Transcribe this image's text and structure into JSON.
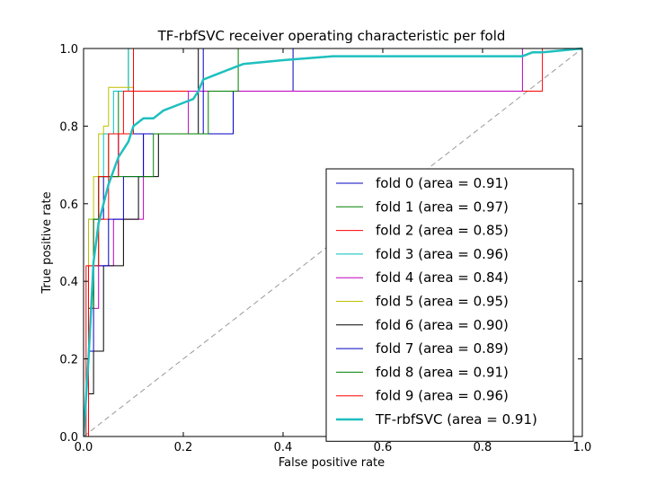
{
  "chart_data": {
    "type": "line",
    "title": "TF-rbfSVC receiver operating characteristic per fold",
    "xlabel": "False positive rate",
    "ylabel": "True positive rate",
    "xlim": [
      0,
      1
    ],
    "ylim": [
      0,
      1
    ],
    "xticks": [
      "0.0",
      "0.2",
      "0.4",
      "0.6",
      "0.8",
      "1.0"
    ],
    "yticks": [
      "0.0",
      "0.2",
      "0.4",
      "0.6",
      "0.8",
      "1.0"
    ],
    "grid": false,
    "legend_position": "lower-right",
    "diagonal": {
      "color": "#999999",
      "style": "dashed"
    },
    "series": [
      {
        "name": "fold 0 (area = 0.91)",
        "color": "#0000bf",
        "x": [
          0,
          0.01,
          0.01,
          0.02,
          0.02,
          0.04,
          0.04,
          0.07,
          0.07,
          0.13,
          0.13,
          0.3,
          0.3,
          0.42,
          0.42,
          1.0
        ],
        "y": [
          0,
          0,
          0.33,
          0.33,
          0.56,
          0.56,
          0.67,
          0.67,
          0.78,
          0.78,
          0.78,
          0.78,
          0.89,
          0.89,
          1.0,
          1.0
        ]
      },
      {
        "name": "fold 1 (area = 0.97)",
        "color": "#008000",
        "x": [
          0,
          0.01,
          0.01,
          0.02,
          0.02,
          0.03,
          0.03,
          0.05,
          0.05,
          0.07,
          0.07,
          0.09,
          0.09,
          0.31,
          0.31,
          1.0
        ],
        "y": [
          0,
          0,
          0.33,
          0.33,
          0.44,
          0.44,
          0.67,
          0.67,
          0.78,
          0.78,
          0.89,
          0.89,
          1.0,
          1.0,
          1.0,
          1.0
        ]
      },
      {
        "name": "fold 2 (area = 0.85)",
        "color": "#ff0000",
        "x": [
          0,
          0.005,
          0.005,
          0.02,
          0.02,
          0.05,
          0.05,
          0.07,
          0.07,
          0.1,
          0.1,
          0.92,
          0.92,
          1.0
        ],
        "y": [
          0,
          0,
          0.44,
          0.44,
          0.56,
          0.56,
          0.67,
          0.67,
          0.78,
          0.78,
          0.89,
          0.89,
          1.0,
          1.0
        ]
      },
      {
        "name": "fold 3 (area = 0.96)",
        "color": "#00bfbf",
        "x": [
          0,
          0.01,
          0.01,
          0.03,
          0.03,
          0.04,
          0.04,
          0.06,
          0.06,
          0.09,
          0.09,
          1.0
        ],
        "y": [
          0,
          0,
          0.56,
          0.56,
          0.67,
          0.67,
          0.78,
          0.78,
          0.89,
          0.89,
          1.0,
          1.0
        ]
      },
      {
        "name": "fold 4 (area = 0.84)",
        "color": "#bf00bf",
        "x": [
          0,
          0.01,
          0.01,
          0.03,
          0.03,
          0.06,
          0.06,
          0.12,
          0.12,
          0.21,
          0.21,
          0.88,
          0.88,
          1.0
        ],
        "y": [
          0,
          0,
          0.33,
          0.33,
          0.44,
          0.44,
          0.56,
          0.56,
          0.78,
          0.78,
          0.89,
          0.89,
          1.0,
          1.0
        ]
      },
      {
        "name": "fold 5 (area = 0.95)",
        "color": "#bfbf00",
        "x": [
          0,
          0.01,
          0.01,
          0.02,
          0.02,
          0.03,
          0.03,
          0.04,
          0.04,
          0.05,
          0.05,
          0.1,
          0.1,
          1.0
        ],
        "y": [
          0,
          0,
          0.56,
          0.56,
          0.67,
          0.67,
          0.78,
          0.78,
          0.8,
          0.8,
          0.9,
          0.9,
          1.0,
          1.0
        ]
      },
      {
        "name": "fold 6 (area = 0.90)",
        "color": "#000000",
        "x": [
          0,
          0.01,
          0.01,
          0.02,
          0.02,
          0.04,
          0.04,
          0.08,
          0.08,
          0.11,
          0.11,
          0.15,
          0.15,
          0.23,
          0.23,
          1.0
        ],
        "y": [
          0,
          0,
          0.11,
          0.11,
          0.22,
          0.22,
          0.44,
          0.44,
          0.56,
          0.56,
          0.67,
          0.67,
          0.78,
          0.78,
          1.0,
          1.0
        ]
      },
      {
        "name": "fold 7 (area = 0.89)",
        "color": "#0000bf",
        "x": [
          0,
          0.01,
          0.01,
          0.02,
          0.02,
          0.05,
          0.05,
          0.08,
          0.08,
          0.12,
          0.12,
          0.24,
          0.24,
          1.0
        ],
        "y": [
          0,
          0,
          0.22,
          0.22,
          0.44,
          0.44,
          0.56,
          0.56,
          0.67,
          0.67,
          0.78,
          0.78,
          1.0,
          1.0
        ]
      },
      {
        "name": "fold 8 (area = 0.91)",
        "color": "#008000",
        "x": [
          0,
          0.01,
          0.01,
          0.02,
          0.02,
          0.03,
          0.03,
          0.06,
          0.06,
          0.14,
          0.14,
          0.25,
          0.25,
          0.31,
          0.31,
          1.0
        ],
        "y": [
          0,
          0,
          0.33,
          0.33,
          0.56,
          0.56,
          0.67,
          0.67,
          0.67,
          0.67,
          0.78,
          0.78,
          0.89,
          0.89,
          1.0,
          1.0
        ]
      },
      {
        "name": "fold 9 (area = 0.96)",
        "color": "#ff0000",
        "x": [
          0,
          0.01,
          0.01,
          0.03,
          0.03,
          0.05,
          0.05,
          0.08,
          0.08,
          0.1,
          0.1,
          1.0
        ],
        "y": [
          0,
          0,
          0.44,
          0.44,
          0.67,
          0.67,
          0.78,
          0.78,
          0.89,
          0.89,
          1.0,
          1.0
        ]
      },
      {
        "name": "TF-rbfSVC (area = 0.91)",
        "color": "#1fbfbf",
        "width": 2.5,
        "x": [
          0,
          0.01,
          0.02,
          0.03,
          0.05,
          0.07,
          0.09,
          0.1,
          0.12,
          0.14,
          0.16,
          0.2,
          0.22,
          0.23,
          0.24,
          0.26,
          0.3,
          0.32,
          0.4,
          0.5,
          0.6,
          0.7,
          0.8,
          0.88,
          0.9,
          0.92,
          1.0
        ],
        "y": [
          0,
          0.2,
          0.45,
          0.55,
          0.65,
          0.72,
          0.76,
          0.8,
          0.82,
          0.82,
          0.84,
          0.86,
          0.87,
          0.89,
          0.92,
          0.93,
          0.95,
          0.96,
          0.97,
          0.98,
          0.98,
          0.98,
          0.98,
          0.98,
          0.99,
          0.99,
          1.0
        ]
      }
    ]
  }
}
